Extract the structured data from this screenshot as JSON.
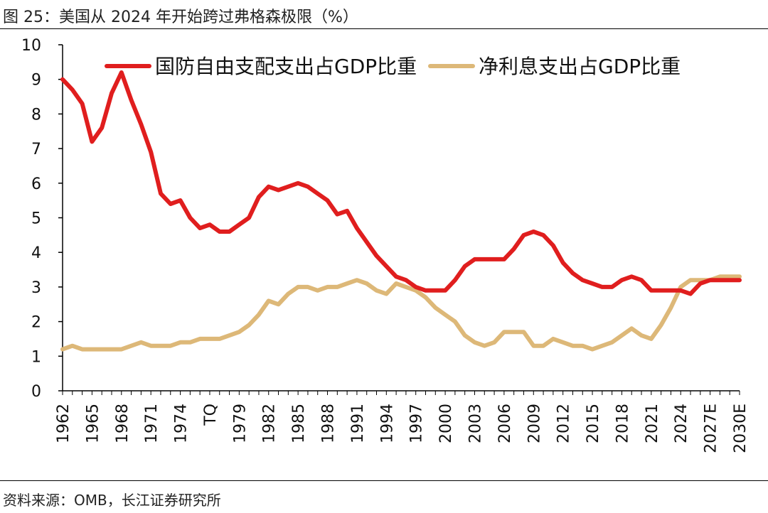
{
  "figure": {
    "title": "图 25：美国从 2024 年开始跨过弗格森极限（%）",
    "source": "资料来源：OMB，长江证券研究所"
  },
  "colors": {
    "defense": "#E01E1E",
    "interest": "#DDB878",
    "axis": "#000000"
  },
  "chart_data": {
    "type": "line",
    "title": "",
    "xlabel": "",
    "ylabel": "",
    "ylim": [
      0,
      10
    ],
    "y_ticks": [
      0,
      1,
      2,
      3,
      4,
      5,
      6,
      7,
      8,
      9,
      10
    ],
    "grid": false,
    "legend_position": "top",
    "x": [
      "1962",
      "1963",
      "1964",
      "1965",
      "1966",
      "1967",
      "1968",
      "1969",
      "1970",
      "1971",
      "1972",
      "1973",
      "1974",
      "1975",
      "1976",
      "TQ",
      "1977",
      "1978",
      "1979",
      "1980",
      "1981",
      "1982",
      "1983",
      "1984",
      "1985",
      "1986",
      "1987",
      "1988",
      "1989",
      "1990",
      "1991",
      "1992",
      "1993",
      "1994",
      "1995",
      "1996",
      "1997",
      "1998",
      "1999",
      "2000",
      "2001",
      "2002",
      "2003",
      "2004",
      "2005",
      "2006",
      "2007",
      "2008",
      "2009",
      "2010",
      "2011",
      "2012",
      "2013",
      "2014",
      "2015",
      "2016",
      "2017",
      "2018",
      "2019",
      "2020",
      "2021",
      "2022",
      "2023",
      "2024",
      "2025",
      "2026",
      "2027E",
      "2028E",
      "2029E",
      "2030E"
    ],
    "x_tick_labels": [
      "1962",
      "1965",
      "1968",
      "1971",
      "1974",
      "TQ",
      "1979",
      "1982",
      "1985",
      "1988",
      "1991",
      "1994",
      "1997",
      "2000",
      "2003",
      "2006",
      "2009",
      "2012",
      "2015",
      "2018",
      "2021",
      "2024",
      "2027E",
      "2030E"
    ],
    "series": [
      {
        "name": "国防自由支配支出占GDP比重",
        "color": "#E01E1E",
        "values": [
          9.0,
          8.7,
          8.3,
          7.2,
          7.6,
          8.6,
          9.2,
          8.4,
          7.7,
          6.9,
          5.7,
          5.4,
          5.5,
          5.0,
          4.7,
          4.8,
          4.6,
          4.6,
          4.8,
          5.0,
          5.6,
          5.9,
          5.8,
          5.9,
          6.0,
          5.9,
          5.7,
          5.5,
          5.1,
          5.2,
          4.7,
          4.3,
          3.9,
          3.6,
          3.3,
          3.2,
          3.0,
          2.9,
          2.9,
          2.9,
          3.2,
          3.6,
          3.8,
          3.8,
          3.8,
          3.8,
          4.1,
          4.5,
          4.6,
          4.5,
          4.2,
          3.7,
          3.4,
          3.2,
          3.1,
          3.0,
          3.0,
          3.2,
          3.3,
          3.2,
          2.9,
          2.9,
          2.9,
          2.9,
          2.8,
          3.1,
          3.2,
          3.2,
          3.2,
          3.2
        ]
      },
      {
        "name": "净利息支出占GDP比重",
        "color": "#DDB878",
        "values": [
          1.2,
          1.3,
          1.2,
          1.2,
          1.2,
          1.2,
          1.2,
          1.3,
          1.4,
          1.3,
          1.3,
          1.3,
          1.4,
          1.4,
          1.5,
          1.5,
          1.5,
          1.6,
          1.7,
          1.9,
          2.2,
          2.6,
          2.5,
          2.8,
          3.0,
          3.0,
          2.9,
          3.0,
          3.0,
          3.1,
          3.2,
          3.1,
          2.9,
          2.8,
          3.1,
          3.0,
          2.9,
          2.7,
          2.4,
          2.2,
          2.0,
          1.6,
          1.4,
          1.3,
          1.4,
          1.7,
          1.7,
          1.7,
          1.3,
          1.3,
          1.5,
          1.4,
          1.3,
          1.3,
          1.2,
          1.3,
          1.4,
          1.6,
          1.8,
          1.6,
          1.5,
          1.9,
          2.4,
          3.0,
          3.2,
          3.2,
          3.2,
          3.3,
          3.3,
          3.3
        ]
      }
    ]
  }
}
